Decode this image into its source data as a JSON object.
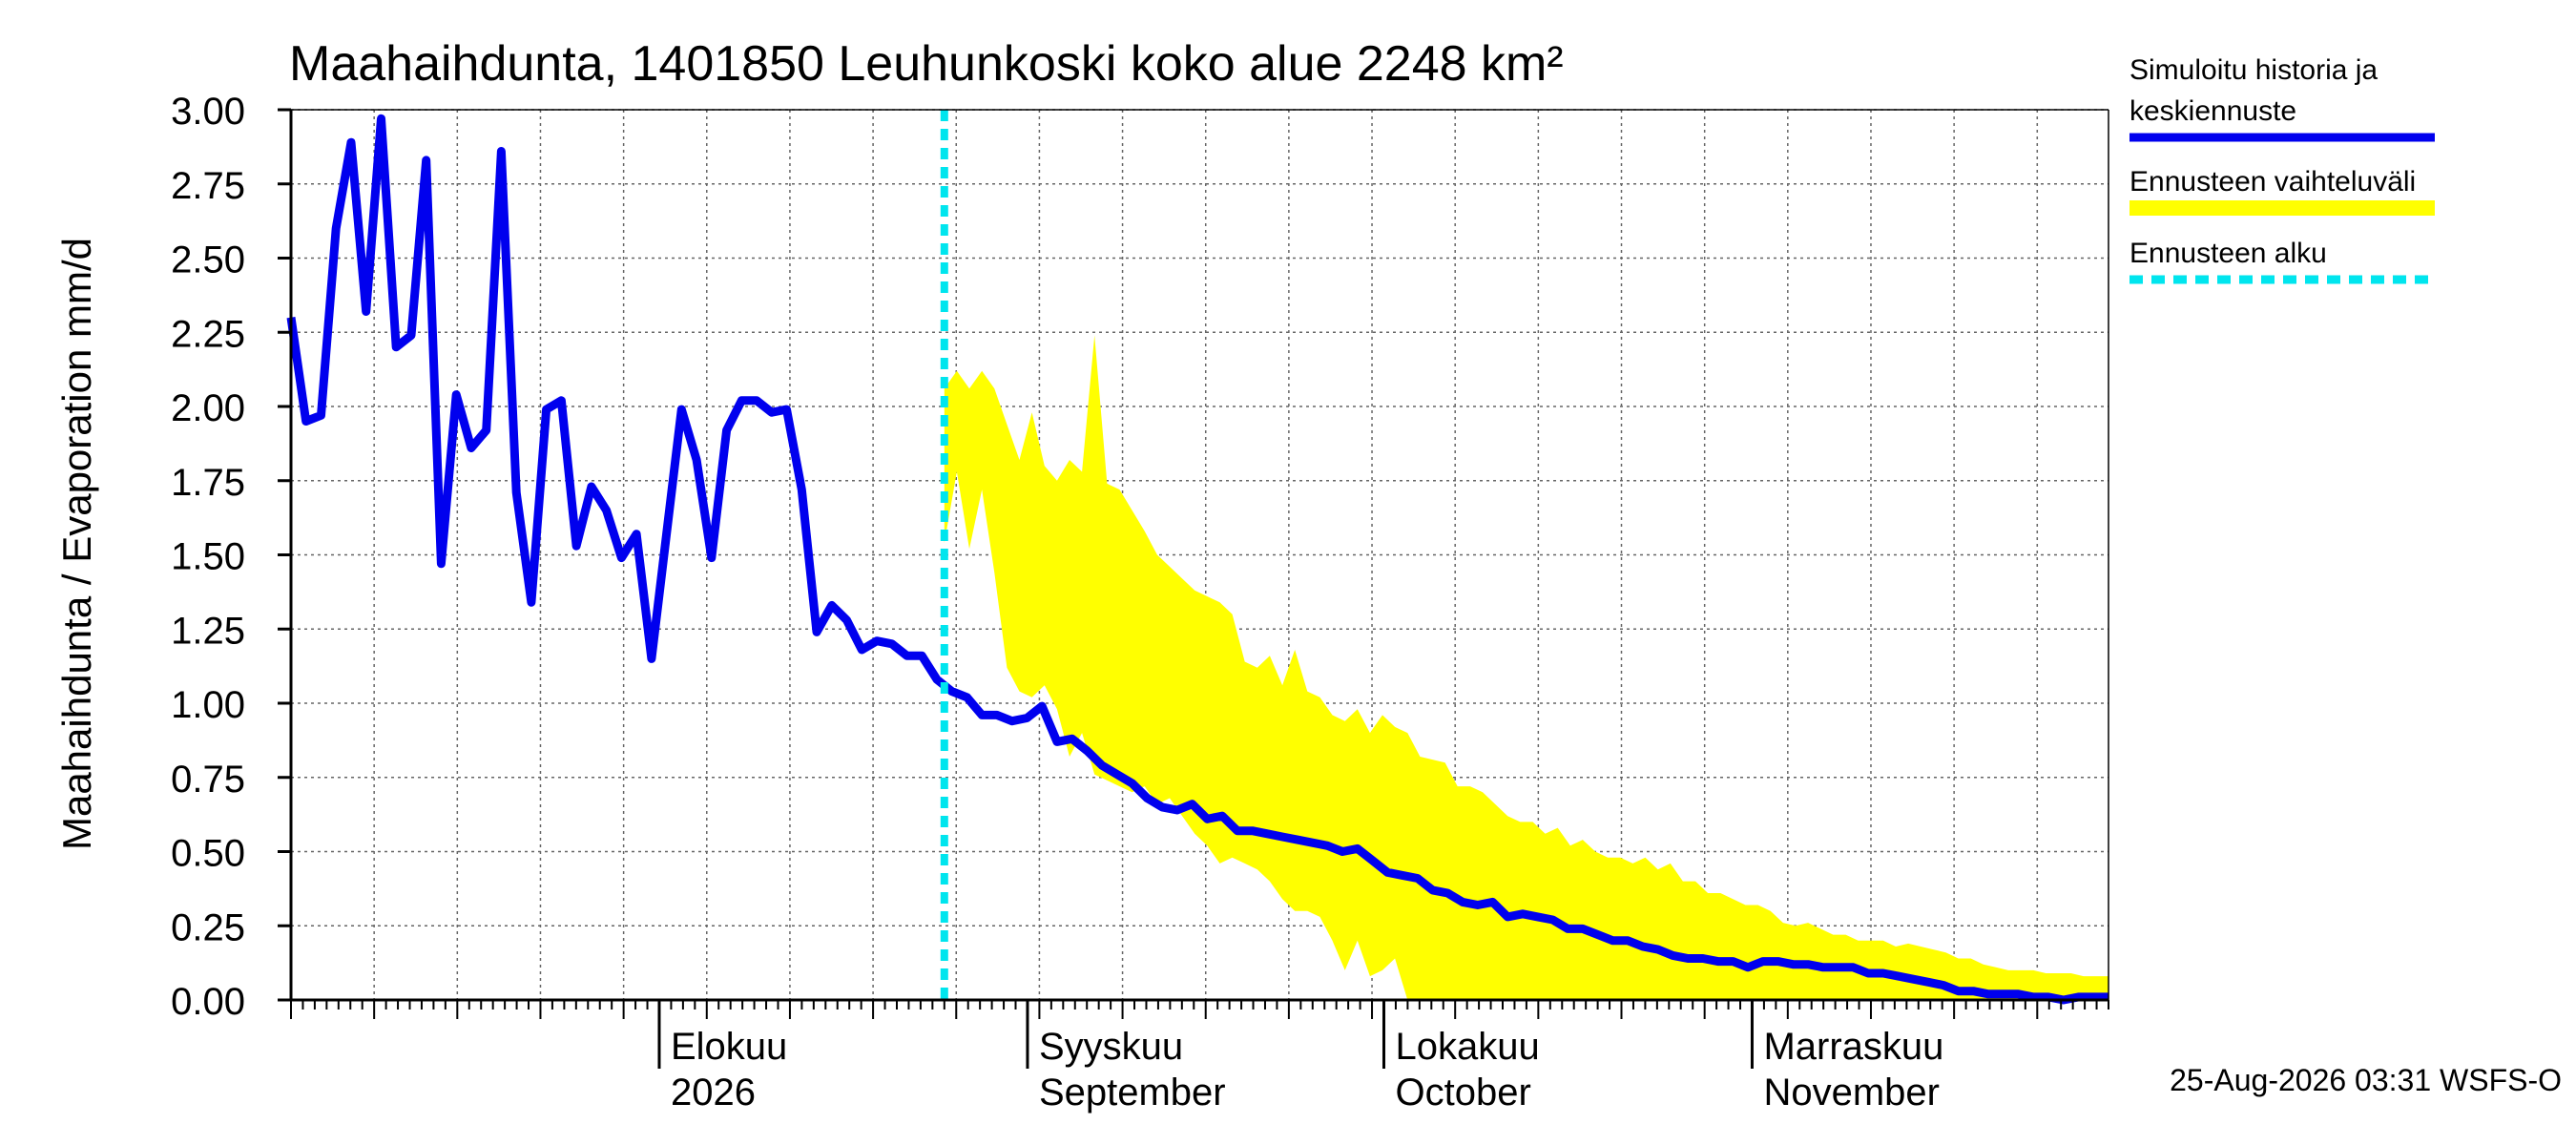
{
  "chart_data": {
    "type": "line",
    "title": "Maahaihdunta, 1401850 Leuhunkoski koko alue 2248 km²",
    "ylabel": "Maahaihdunta / Evaporation   mm/d",
    "ylim": [
      0,
      3
    ],
    "yticks": [
      "0.00",
      "0.25",
      "0.50",
      "0.75",
      "1.00",
      "1.25",
      "1.50",
      "1.75",
      "2.00",
      "2.25",
      "2.50",
      "2.75",
      "3.00"
    ],
    "x_range": [
      "2026-07-01",
      "2026-12-01"
    ],
    "month_labels": [
      {
        "date": "2026-08-01",
        "line1": "Elokuu",
        "line2": "2026"
      },
      {
        "date": "2026-09-01",
        "line1": "Syyskuu",
        "line2": "September"
      },
      {
        "date": "2026-10-01",
        "line1": "Lokakuu",
        "line2": "October"
      },
      {
        "date": "2026-11-01",
        "line1": "Marraskuu",
        "line2": "November"
      }
    ],
    "forecast_start": "2026-08-25",
    "grid": true,
    "legend_placement": "right",
    "series": [
      {
        "name": "Simuloitu historia ja keskiennuste",
        "color": "#0000ee",
        "values": [
          2.3,
          1.95,
          1.97,
          2.6,
          2.89,
          2.32,
          2.97,
          2.2,
          2.24,
          2.83,
          1.47,
          2.04,
          1.86,
          1.92,
          2.86,
          1.71,
          1.34,
          1.99,
          2.02,
          1.53,
          1.73,
          1.65,
          1.49,
          1.57,
          1.15,
          1.57,
          1.99,
          1.82,
          1.49,
          1.92,
          2.02,
          2.02,
          1.98,
          1.99,
          1.72,
          1.24,
          1.33,
          1.28,
          1.18,
          1.21,
          1.2,
          1.16,
          1.16,
          1.08,
          1.04,
          1.02,
          0.96,
          0.96,
          0.94,
          0.95,
          0.99,
          0.87,
          0.88,
          0.84,
          0.79,
          0.76,
          0.73,
          0.68,
          0.65,
          0.64,
          0.66,
          0.61,
          0.62,
          0.57,
          0.57,
          0.56,
          0.55,
          0.54,
          0.53,
          0.52,
          0.5,
          0.51,
          0.47,
          0.43,
          0.42,
          0.41,
          0.37,
          0.36,
          0.33,
          0.32,
          0.33,
          0.28,
          0.29,
          0.28,
          0.27,
          0.24,
          0.24,
          0.22,
          0.2,
          0.2,
          0.18,
          0.17,
          0.15,
          0.14,
          0.14,
          0.13,
          0.13,
          0.11,
          0.13,
          0.13,
          0.12,
          0.12,
          0.11,
          0.11,
          0.11,
          0.09,
          0.09,
          0.08,
          0.07,
          0.06,
          0.05,
          0.03,
          0.03,
          0.02,
          0.02,
          0.02,
          0.01,
          0.01,
          0.0,
          0.01,
          0.01,
          0.01
        ]
      },
      {
        "name": "Ennusteen vaihteluväli",
        "color": "#ffff00",
        "start": "2026-08-25",
        "upper": [
          2.06,
          2.12,
          2.06,
          2.12,
          2.06,
          1.94,
          1.82,
          1.98,
          1.8,
          1.75,
          1.82,
          1.78,
          2.24,
          1.74,
          1.72,
          1.65,
          1.58,
          1.5,
          1.46,
          1.42,
          1.38,
          1.36,
          1.34,
          1.3,
          1.14,
          1.12,
          1.16,
          1.06,
          1.18,
          1.04,
          1.02,
          0.96,
          0.94,
          0.98,
          0.9,
          0.96,
          0.92,
          0.9,
          0.82,
          0.81,
          0.8,
          0.72,
          0.72,
          0.7,
          0.66,
          0.62,
          0.6,
          0.6,
          0.56,
          0.58,
          0.52,
          0.54,
          0.5,
          0.48,
          0.48,
          0.46,
          0.48,
          0.44,
          0.46,
          0.4,
          0.4,
          0.36,
          0.36,
          0.34,
          0.32,
          0.32,
          0.3,
          0.26,
          0.25,
          0.26,
          0.24,
          0.22,
          0.22,
          0.2,
          0.2,
          0.2,
          0.18,
          0.19,
          0.18,
          0.17,
          0.16,
          0.14,
          0.14,
          0.12,
          0.11,
          0.1,
          0.1,
          0.1,
          0.09,
          0.09,
          0.09,
          0.08,
          0.08,
          0.08
        ],
        "lower": [
          1.54,
          1.78,
          1.52,
          1.72,
          1.44,
          1.12,
          1.04,
          1.02,
          1.06,
          0.98,
          0.82,
          0.9,
          0.76,
          0.74,
          0.72,
          0.7,
          0.72,
          0.66,
          0.68,
          0.62,
          0.56,
          0.52,
          0.46,
          0.48,
          0.46,
          0.44,
          0.4,
          0.34,
          0.3,
          0.3,
          0.28,
          0.2,
          0.1,
          0.2,
          0.08,
          0.1,
          0.14,
          0.0,
          0.0,
          0.0,
          0.0,
          0.0,
          0.0,
          0.0,
          0.0,
          0.0,
          0.0,
          0.0,
          0.0,
          0.0,
          0.0,
          0.0,
          0.0,
          0.0,
          0.0,
          0.0,
          0.0,
          0.0,
          0.0,
          0.0,
          0.0,
          0.0,
          0.0,
          0.0,
          0.0,
          0.0,
          0.0,
          0.0,
          0.0,
          0.0,
          0.0,
          0.0,
          0.0,
          0.0,
          0.0,
          0.0,
          0.0,
          0.0,
          0.0,
          0.0,
          0.0,
          0.0,
          0.0,
          0.0,
          0.0,
          0.0,
          0.0,
          0.0,
          0.0,
          0.0,
          0.0,
          0.0,
          0.0,
          0.0
        ]
      },
      {
        "name": "Ennusteen alku",
        "color": "#00e5ee"
      }
    ],
    "legend": [
      {
        "label_line1": "Simuloitu historia ja",
        "label_line2": "keskiennuste",
        "color": "#0000ee",
        "style": "solid"
      },
      {
        "label_line1": "Ennusteen vaihteluväli",
        "label_line2": "",
        "color": "#ffff00",
        "style": "solid"
      },
      {
        "label_line1": "Ennusteen alku",
        "label_line2": "",
        "color": "#00e5ee",
        "style": "dashed"
      }
    ],
    "footer": "25-Aug-2026 03:31 WSFS-O"
  }
}
